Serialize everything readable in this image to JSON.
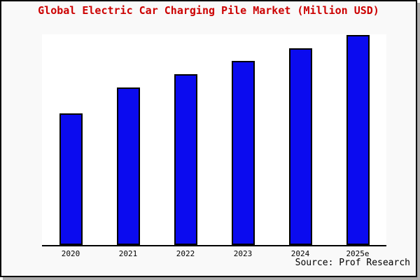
{
  "page": {
    "title": "Global Electric Car Charging Pile Market (Million USD)",
    "source": "Source: Prof Research"
  },
  "chart_data": {
    "type": "bar",
    "title": "Global Electric Car Charging Pile Market (Million USD)",
    "categories": [
      "2020",
      "2021",
      "2022",
      "2023",
      "2024",
      "2025e"
    ],
    "values": [
      62.7,
      75.0,
      81.3,
      87.7,
      93.8,
      100.0
    ],
    "value_unit": "percent of tallest bar (no y-axis scale shown in chart)",
    "xlabel": "",
    "ylabel": "",
    "ylim": [
      0,
      100
    ],
    "y_axis_visible": false,
    "grid": false,
    "legend": false,
    "source": "Source: Prof Research"
  },
  "colors": {
    "title_text": "#cc0000",
    "bar_fill": "#0b0bef",
    "bar_outline": "#000000",
    "axis_line": "#000000",
    "plot_background": "#ffffff",
    "page_background": "#f9f9f9",
    "frame_border": "#000000",
    "frame_shadow": "#aaaaaa",
    "tick_text": "#000000",
    "source_text": "#000000"
  }
}
